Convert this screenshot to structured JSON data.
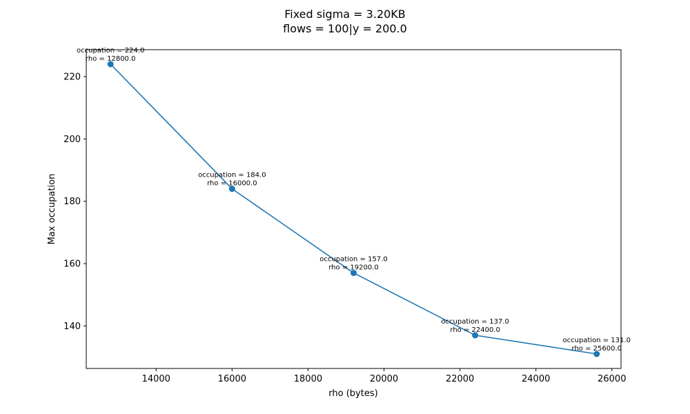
{
  "chart_data": {
    "type": "line",
    "title": [
      "Fixed sigma = 3.20KB",
      "flows = 100|y = 200.0"
    ],
    "xlabel": "rho (bytes)",
    "ylabel": "Max occupation",
    "xlim": [
      12160,
      26240
    ],
    "ylim": [
      126.35,
      228.65
    ],
    "xticks": [
      14000,
      16000,
      18000,
      20000,
      22000,
      24000,
      26000
    ],
    "yticks": [
      140,
      160,
      180,
      200,
      220
    ],
    "grid": false,
    "legend": "none",
    "series": [
      {
        "color": "#1f77b4",
        "marker": "circle",
        "points": [
          {
            "x": 12800,
            "y": 224,
            "label": [
              "occupation = 224.0",
              "rho = 12800.0"
            ]
          },
          {
            "x": 16000,
            "y": 184,
            "label": [
              "occupation = 184.0",
              "rho = 16000.0"
            ]
          },
          {
            "x": 19200,
            "y": 157,
            "label": [
              "occupation = 157.0",
              "rho = 19200.0"
            ]
          },
          {
            "x": 22400,
            "y": 137,
            "label": [
              "occupation = 137.0",
              "rho = 22400.0"
            ]
          },
          {
            "x": 25600,
            "y": 131,
            "label": [
              "occupation = 131.0",
              "rho = 25600.0"
            ]
          }
        ]
      }
    ]
  }
}
